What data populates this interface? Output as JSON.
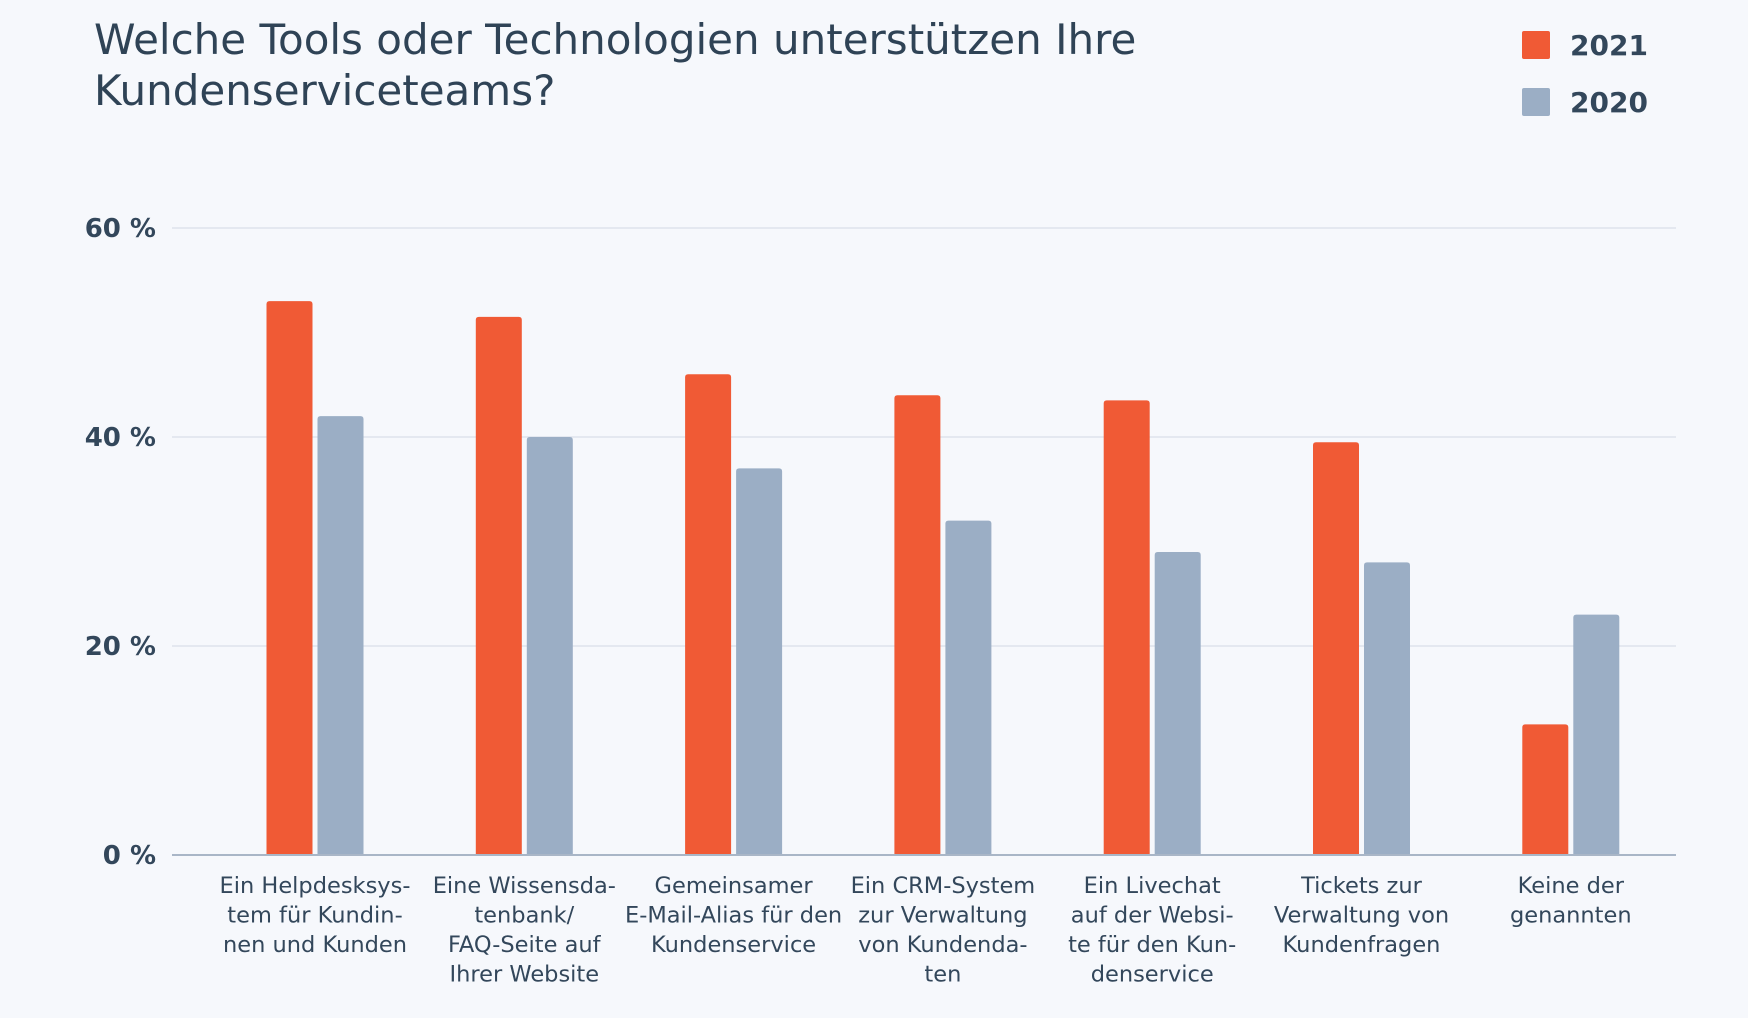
{
  "chart_data": {
    "type": "bar",
    "title": "Welche Tools oder Technologien unterstützen Ihre Kundenserviceteams?",
    "xlabel": "",
    "ylabel": "",
    "ylim": [
      0,
      60
    ],
    "yticks": [
      0,
      20,
      40,
      60
    ],
    "ytick_labels": [
      "0 %",
      "20 %",
      "40 %",
      "60 %"
    ],
    "grid": true,
    "legend_position": "top-right",
    "categories": [
      "Ein Helpdesksystem für Kundinnen und Kunden",
      "Eine Wissensdatenbank/ FAQ-Seite auf Ihrer Website",
      "Gemeinsamer E-Mail-Alias für den Kundenservice",
      "Ein CRM-System zur Verwaltung von Kundendaten",
      "Ein Livechat auf der Website für den Kundenservice",
      "Tickets zur Verwaltung von Kundenfragen",
      "Keine der genannten"
    ],
    "category_display_lines": [
      [
        "Ein Helpdesksys-",
        "tem für Kundin-",
        "nen und Kunden"
      ],
      [
        "Eine Wissensda-",
        "tenbank/",
        "FAQ-Seite auf",
        "Ihrer Website"
      ],
      [
        "Gemeinsamer",
        "E-Mail-Alias für den",
        "Kundenservice"
      ],
      [
        "Ein CRM-System",
        "zur Verwaltung",
        "von Kundenda-",
        "ten"
      ],
      [
        "Ein Livechat",
        "auf der Websi-",
        "te für den Kun-",
        "denservice"
      ],
      [
        "Tickets zur",
        "Verwaltung von",
        "Kundenfragen"
      ],
      [
        "Keine der",
        "genannten"
      ]
    ],
    "series": [
      {
        "name": "2021",
        "color": "#f05a35",
        "values": [
          53,
          51.5,
          46,
          44,
          43.5,
          39.5,
          12.5
        ]
      },
      {
        "name": "2020",
        "color": "#9baec5",
        "values": [
          42,
          40,
          37,
          32,
          29,
          28,
          23
        ]
      }
    ]
  },
  "colors": {
    "background": "#f6f8fc",
    "text": "#33475b",
    "grid": "#dde3ec",
    "axis": "#a9b6c7"
  }
}
